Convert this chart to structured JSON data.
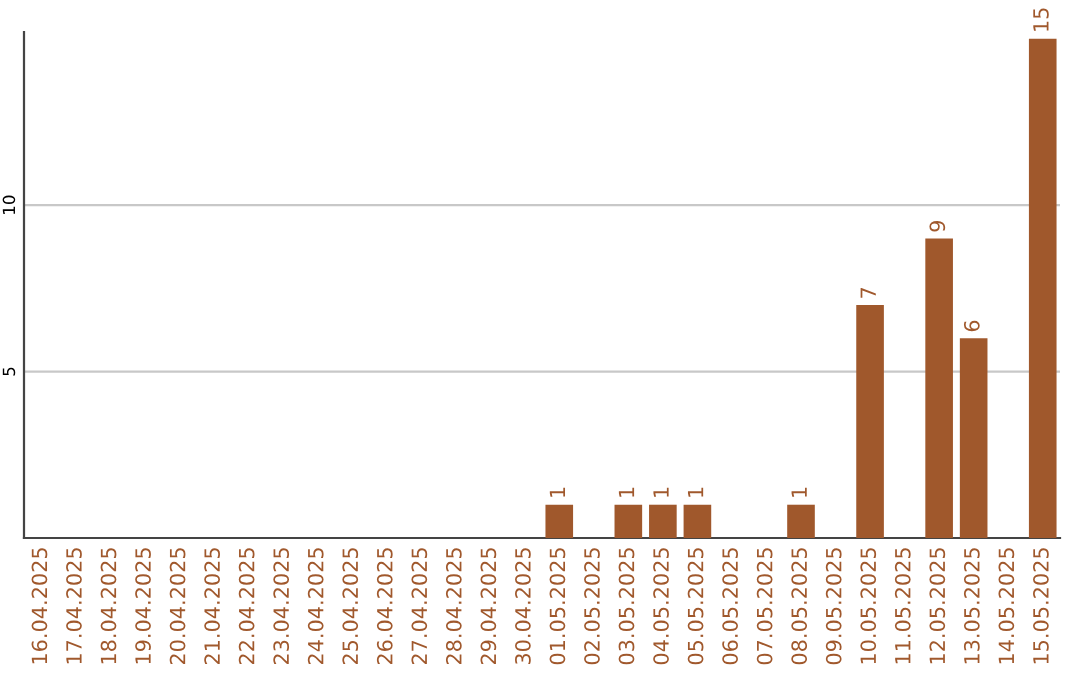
{
  "chart_data": {
    "type": "bar",
    "categories": [
      "16.04.2025",
      "17.04.2025",
      "18.04.2025",
      "19.04.2025",
      "20.04.2025",
      "21.04.2025",
      "22.04.2025",
      "23.04.2025",
      "24.04.2025",
      "25.04.2025",
      "26.04.2025",
      "27.04.2025",
      "28.04.2025",
      "29.04.2025",
      "30.04.2025",
      "01.05.2025",
      "02.05.2025",
      "03.05.2025",
      "04.05.2025",
      "05.05.2025",
      "06.05.2025",
      "07.05.2025",
      "08.05.2025",
      "09.05.2025",
      "10.05.2025",
      "11.05.2025",
      "12.05.2025",
      "13.05.2025",
      "14.05.2025",
      "15.05.2025"
    ],
    "values": [
      0,
      0,
      0,
      0,
      0,
      0,
      0,
      0,
      0,
      0,
      0,
      0,
      0,
      0,
      0,
      1,
      0,
      1,
      1,
      1,
      0,
      0,
      1,
      0,
      7,
      0,
      9,
      6,
      0,
      15
    ],
    "value_labels": [
      null,
      null,
      null,
      null,
      null,
      null,
      null,
      null,
      null,
      null,
      null,
      null,
      null,
      null,
      null,
      "1",
      null,
      "1",
      "1",
      "1",
      null,
      null,
      "1",
      null,
      "7",
      null,
      "9",
      "6",
      null,
      "15"
    ],
    "color": "#a0582c",
    "ylim": [
      0,
      15.2
    ],
    "yticks": [
      5,
      10
    ],
    "grid": "y"
  }
}
